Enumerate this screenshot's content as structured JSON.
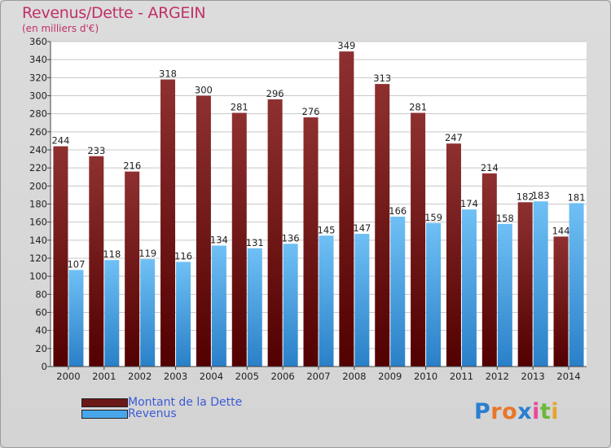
{
  "title": "Revenus/Dette - ARGEIN",
  "subtitle": "(en milliers d'€)",
  "colors": {
    "debt_top": "#8e3030",
    "debt_bottom": "#520000",
    "revenue_top": "#6fc0f5",
    "revenue_bottom": "#2a80c8",
    "title": "#c0306a",
    "legend_text": "#3b5bd6"
  },
  "legend": [
    {
      "label": "Montant de la Dette",
      "color": "#6b1818"
    },
    {
      "label": "Revenus",
      "color": "#4aa6ea"
    }
  ],
  "logo": {
    "text": "Proxiti"
  },
  "chart_data": {
    "type": "bar",
    "categories": [
      "2000",
      "2001",
      "2002",
      "2003",
      "2004",
      "2005",
      "2006",
      "2007",
      "2008",
      "2009",
      "2010",
      "2011",
      "2012",
      "2013",
      "2014"
    ],
    "series": [
      {
        "name": "Montant de la Dette",
        "values": [
          244,
          233,
          216,
          318,
          300,
          281,
          296,
          276,
          349,
          313,
          281,
          247,
          214,
          182,
          144
        ]
      },
      {
        "name": "Revenus",
        "values": [
          107,
          118,
          119,
          116,
          134,
          131,
          136,
          145,
          147,
          166,
          159,
          174,
          158,
          183,
          181
        ]
      }
    ],
    "ylim": [
      0,
      360
    ],
    "yticks": [
      0,
      20,
      40,
      60,
      80,
      100,
      120,
      140,
      160,
      180,
      200,
      220,
      240,
      260,
      280,
      300,
      320,
      340,
      360
    ],
    "grid": true,
    "legend_position": "bottom-left"
  }
}
